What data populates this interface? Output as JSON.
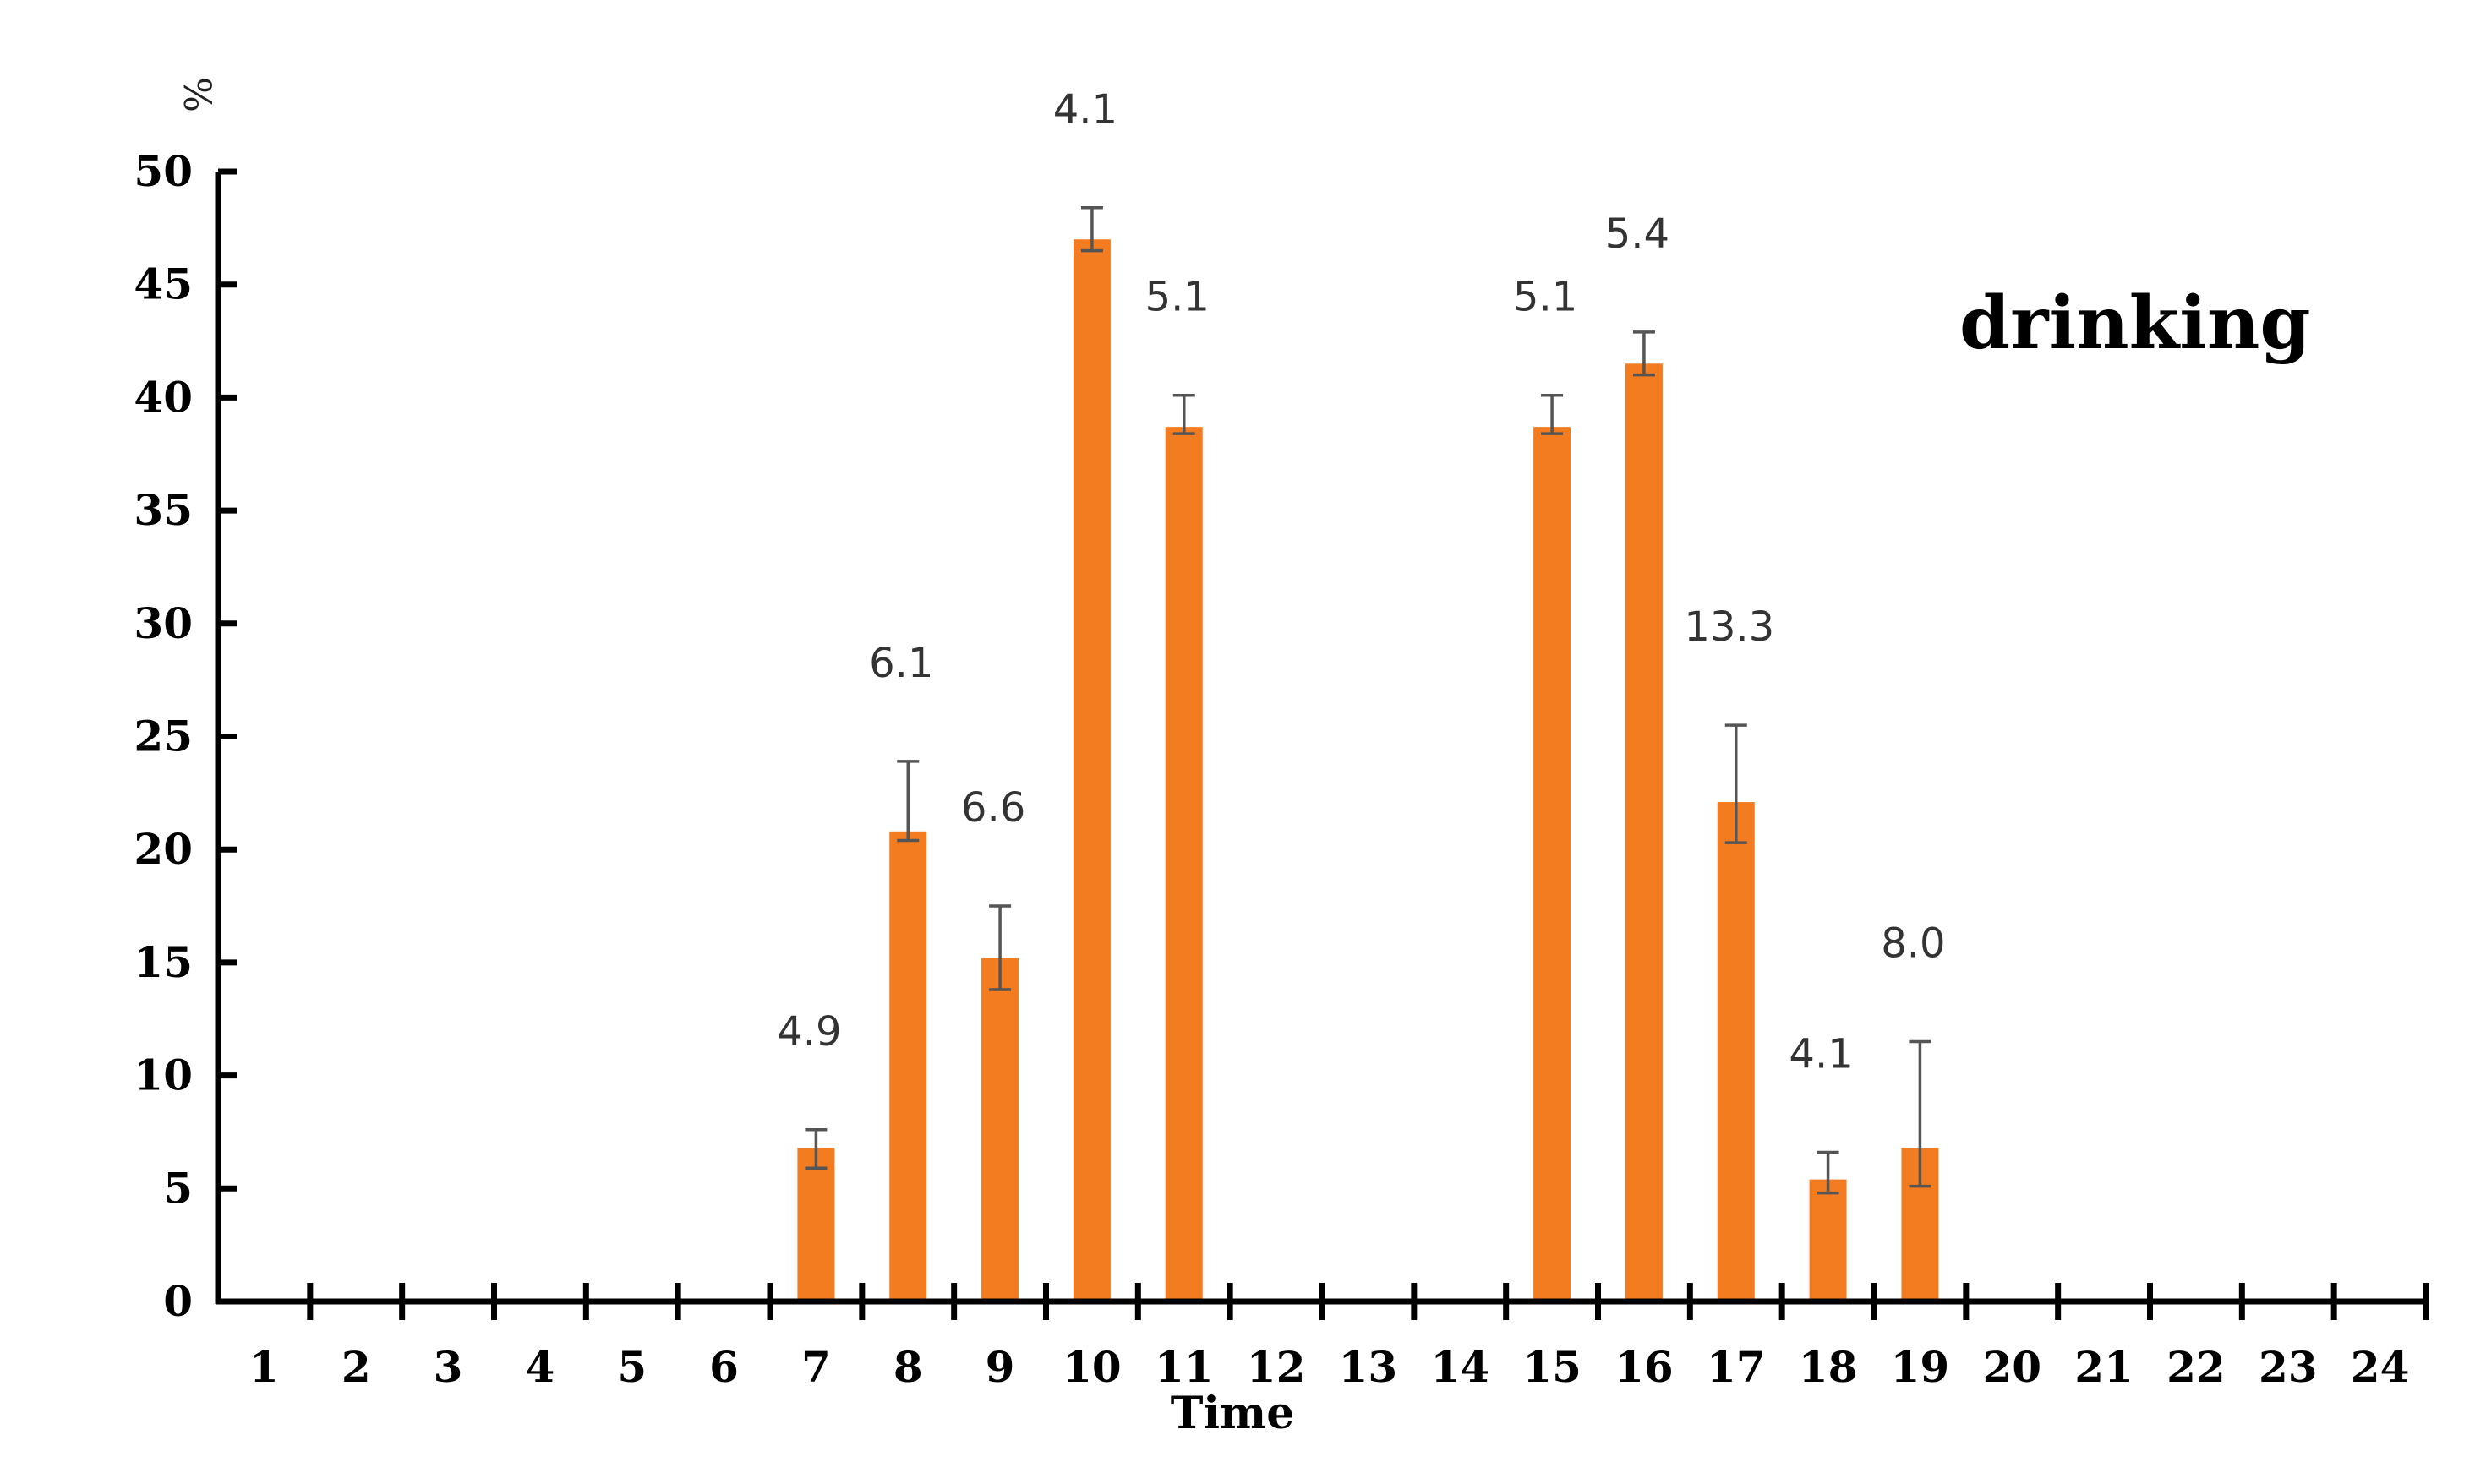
{
  "chart_data": {
    "type": "bar",
    "title": "",
    "annotation": "drinking",
    "xlabel": "Time",
    "ylabel": "%",
    "ylim": [
      0,
      50
    ],
    "yticks": [
      0,
      5,
      10,
      15,
      20,
      25,
      30,
      35,
      40,
      45,
      50
    ],
    "grid": false,
    "legend": "none",
    "bar_color": "#F47C20",
    "error_color": "#555555",
    "categories": [
      "1",
      "2",
      "3",
      "4",
      "5",
      "6",
      "7",
      "8",
      "9",
      "10",
      "11",
      "12",
      "13",
      "14",
      "15",
      "16",
      "17",
      "18",
      "19",
      "20",
      "21",
      "22",
      "23",
      "24"
    ],
    "values": [
      0,
      0,
      0,
      0,
      0,
      0,
      6.8,
      20.8,
      15.2,
      47.0,
      38.7,
      0,
      0,
      0,
      38.7,
      41.5,
      22.1,
      5.4,
      6.8,
      0,
      0,
      0,
      0,
      0
    ],
    "error_high": [
      null,
      null,
      null,
      null,
      null,
      null,
      7.6,
      23.9,
      17.5,
      48.4,
      40.1,
      null,
      null,
      null,
      40.1,
      42.9,
      25.5,
      6.6,
      11.5,
      null,
      null,
      null,
      null,
      null
    ],
    "error_low": [
      null,
      null,
      null,
      null,
      null,
      null,
      5.9,
      20.4,
      13.8,
      46.5,
      38.4,
      null,
      null,
      null,
      38.4,
      41.0,
      20.3,
      4.8,
      5.1,
      null,
      null,
      null,
      null,
      null
    ],
    "labels": [
      "",
      "",
      "",
      "",
      "",
      "",
      "4.9",
      "6.1",
      "6.6",
      "4.1",
      "5.1",
      "",
      "",
      "",
      "5.1",
      "5.4",
      "13.3",
      "4.1",
      "8.0",
      "",
      "",
      "",
      "",
      ""
    ]
  }
}
